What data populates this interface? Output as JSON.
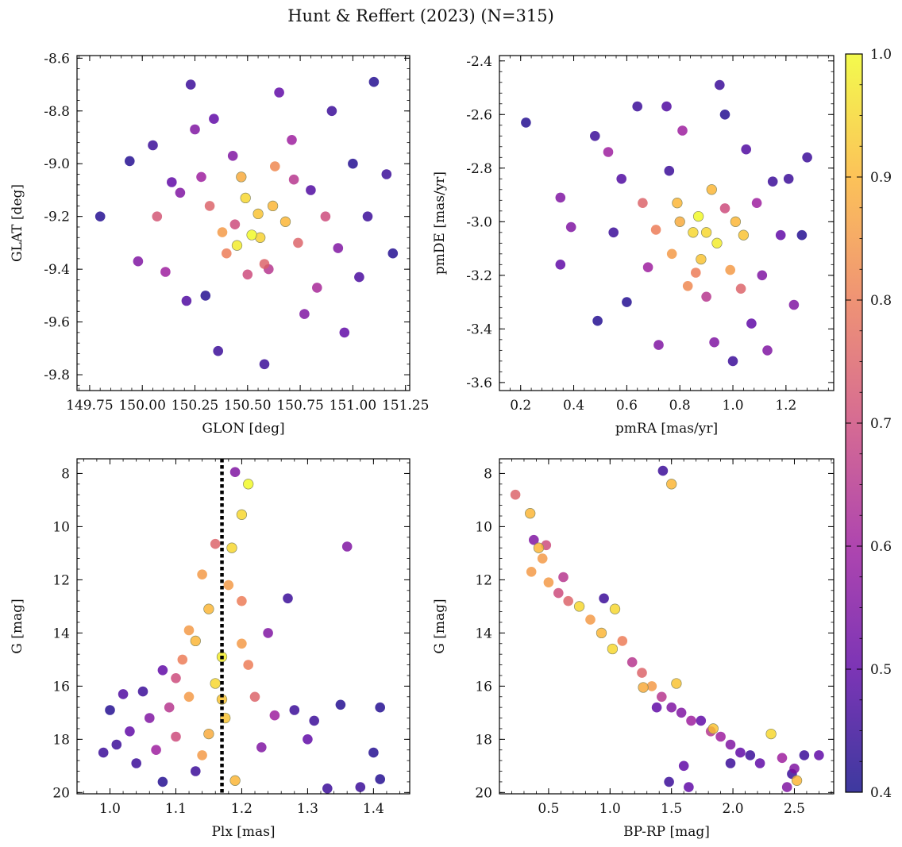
{
  "title": "Hunt & Reffert (2023) (N=315)",
  "colorbar": {
    "range": [
      0.4,
      1.0
    ],
    "ticks": [
      "0.4",
      "0.5",
      "0.6",
      "0.7",
      "0.8",
      "0.9",
      "1.0"
    ],
    "colormap_stops": [
      "#0d0887",
      "#5b02a3",
      "#9a179b",
      "#cb4678",
      "#eb7852",
      "#fbb32f",
      "#f0f921"
    ]
  },
  "chart_data": [
    {
      "type": "scatter",
      "name": "sky-position",
      "xlabel": "GLON [deg]",
      "ylabel": "GLAT [deg]",
      "xlim": [
        149.69,
        151.27
      ],
      "ylim": [
        -9.86,
        -8.59
      ],
      "xticks": [
        "149.75",
        "150.00",
        "150.25",
        "150.50",
        "150.75",
        "151.00",
        "151.25"
      ],
      "yticks": [
        "-8.6",
        "-8.8",
        "-9.0",
        "-9.2",
        "-9.4",
        "-9.6",
        "-9.8"
      ],
      "points": [
        [
          149.8,
          -9.2,
          0.42
        ],
        [
          149.94,
          -8.99,
          0.42
        ],
        [
          149.98,
          -9.37,
          0.55
        ],
        [
          150.05,
          -8.93,
          0.45
        ],
        [
          150.07,
          -9.2,
          0.72
        ],
        [
          150.11,
          -9.41,
          0.6
        ],
        [
          150.14,
          -9.07,
          0.5
        ],
        [
          150.18,
          -9.11,
          0.55
        ],
        [
          150.21,
          -9.52,
          0.48
        ],
        [
          150.23,
          -8.7,
          0.45
        ],
        [
          150.25,
          -8.87,
          0.55
        ],
        [
          150.3,
          -9.5,
          0.42
        ],
        [
          150.32,
          -9.16,
          0.75
        ],
        [
          150.34,
          -8.83,
          0.5
        ],
        [
          150.36,
          -9.71,
          0.45
        ],
        [
          150.4,
          -9.34,
          0.8
        ],
        [
          150.44,
          -9.23,
          0.7
        ],
        [
          150.47,
          -9.05,
          0.88
        ],
        [
          150.49,
          -9.13,
          0.95
        ],
        [
          150.52,
          -9.27,
          1.0
        ],
        [
          150.55,
          -9.19,
          0.92
        ],
        [
          150.58,
          -9.76,
          0.45
        ],
        [
          150.6,
          -9.4,
          0.65
        ],
        [
          150.63,
          -9.01,
          0.82
        ],
        [
          150.65,
          -8.73,
          0.5
        ],
        [
          150.68,
          -9.22,
          0.9
        ],
        [
          150.71,
          -8.91,
          0.6
        ],
        [
          150.74,
          -9.3,
          0.75
        ],
        [
          150.77,
          -9.57,
          0.55
        ],
        [
          150.8,
          -9.1,
          0.48
        ],
        [
          150.83,
          -9.47,
          0.62
        ],
        [
          150.87,
          -9.2,
          0.7
        ],
        [
          150.9,
          -8.8,
          0.45
        ],
        [
          150.93,
          -9.32,
          0.55
        ],
        [
          150.96,
          -9.64,
          0.5
        ],
        [
          151.0,
          -9.0,
          0.42
        ],
        [
          151.03,
          -9.43,
          0.47
        ],
        [
          151.07,
          -9.2,
          0.45
        ],
        [
          151.1,
          -8.69,
          0.42
        ],
        [
          151.16,
          -9.04,
          0.45
        ],
        [
          151.19,
          -9.34,
          0.42
        ],
        [
          150.45,
          -9.31,
          0.98
        ],
        [
          150.56,
          -9.28,
          0.94
        ],
        [
          150.62,
          -9.16,
          0.9
        ],
        [
          150.38,
          -9.26,
          0.85
        ],
        [
          150.5,
          -9.42,
          0.7
        ],
        [
          150.28,
          -9.05,
          0.6
        ],
        [
          150.72,
          -9.06,
          0.65
        ],
        [
          150.58,
          -9.38,
          0.75
        ],
        [
          150.43,
          -8.97,
          0.55
        ]
      ]
    },
    {
      "type": "scatter",
      "name": "proper-motion",
      "xlabel": "pmRA [mas/yr]",
      "ylabel": "pmDE [mas/yr]",
      "xlim": [
        0.12,
        1.38
      ],
      "ylim": [
        -3.63,
        -2.38
      ],
      "xticks": [
        "0.2",
        "0.4",
        "0.6",
        "0.8",
        "1.0",
        "1.2"
      ],
      "yticks": [
        "-2.4",
        "-2.6",
        "-2.8",
        "-3.0",
        "-3.2",
        "-3.4",
        "-3.6"
      ],
      "points": [
        [
          0.22,
          -2.63,
          0.42
        ],
        [
          0.35,
          -2.91,
          0.55
        ],
        [
          0.35,
          -3.16,
          0.5
        ],
        [
          0.39,
          -3.02,
          0.55
        ],
        [
          0.48,
          -2.68,
          0.45
        ],
        [
          0.49,
          -3.37,
          0.42
        ],
        [
          0.53,
          -2.74,
          0.6
        ],
        [
          0.55,
          -3.04,
          0.45
        ],
        [
          0.58,
          -2.84,
          0.48
        ],
        [
          0.6,
          -3.3,
          0.42
        ],
        [
          0.64,
          -2.57,
          0.45
        ],
        [
          0.66,
          -2.93,
          0.75
        ],
        [
          0.68,
          -3.17,
          0.6
        ],
        [
          0.71,
          -3.03,
          0.8
        ],
        [
          0.72,
          -3.46,
          0.55
        ],
        [
          0.75,
          -2.57,
          0.48
        ],
        [
          0.77,
          -3.12,
          0.85
        ],
        [
          0.79,
          -2.93,
          0.9
        ],
        [
          0.81,
          -2.66,
          0.6
        ],
        [
          0.83,
          -3.24,
          0.82
        ],
        [
          0.85,
          -3.04,
          0.95
        ],
        [
          0.87,
          -2.98,
          1.0
        ],
        [
          0.88,
          -3.14,
          0.92
        ],
        [
          0.9,
          -3.28,
          0.65
        ],
        [
          0.92,
          -2.88,
          0.9
        ],
        [
          0.94,
          -3.08,
          0.98
        ],
        [
          0.95,
          -2.49,
          0.45
        ],
        [
          0.97,
          -2.6,
          0.42
        ],
        [
          0.99,
          -3.18,
          0.85
        ],
        [
          1.01,
          -3.0,
          0.9
        ],
        [
          1.03,
          -3.25,
          0.75
        ],
        [
          1.05,
          -2.73,
          0.48
        ],
        [
          1.07,
          -3.38,
          0.5
        ],
        [
          1.09,
          -2.93,
          0.6
        ],
        [
          1.11,
          -3.2,
          0.55
        ],
        [
          1.13,
          -3.48,
          0.55
        ],
        [
          1.15,
          -2.85,
          0.45
        ],
        [
          1.18,
          -3.05,
          0.5
        ],
        [
          1.21,
          -2.84,
          0.45
        ],
        [
          1.23,
          -3.31,
          0.55
        ],
        [
          1.26,
          -3.05,
          0.42
        ],
        [
          1.28,
          -2.76,
          0.45
        ],
        [
          0.93,
          -3.45,
          0.55
        ],
        [
          1.0,
          -3.52,
          0.45
        ],
        [
          0.76,
          -2.81,
          0.45
        ],
        [
          0.9,
          -3.04,
          0.95
        ],
        [
          0.8,
          -3.0,
          0.88
        ],
        [
          1.04,
          -3.05,
          0.92
        ],
        [
          0.86,
          -3.19,
          0.8
        ],
        [
          0.97,
          -2.95,
          0.7
        ]
      ]
    },
    {
      "type": "scatter",
      "name": "parallax-magnitude",
      "xlabel": "Plx [mas]",
      "ylabel": "G [mag]",
      "xlim": [
        0.95,
        1.455
      ],
      "ylim": [
        20.05,
        7.45
      ],
      "xticks": [
        "1.0",
        "1.1",
        "1.2",
        "1.3",
        "1.4"
      ],
      "yticks": [
        "8",
        "10",
        "12",
        "14",
        "16",
        "18",
        "20"
      ],
      "vline": 1.17,
      "points": [
        [
          0.99,
          18.5,
          0.45
        ],
        [
          1.0,
          16.9,
          0.42
        ],
        [
          1.01,
          18.2,
          0.45
        ],
        [
          1.02,
          16.3,
          0.48
        ],
        [
          1.03,
          17.7,
          0.5
        ],
        [
          1.04,
          18.9,
          0.45
        ],
        [
          1.05,
          16.2,
          0.45
        ],
        [
          1.06,
          17.2,
          0.55
        ],
        [
          1.07,
          18.4,
          0.6
        ],
        [
          1.08,
          15.4,
          0.5
        ],
        [
          1.09,
          16.8,
          0.65
        ],
        [
          1.1,
          17.9,
          0.7
        ],
        [
          1.11,
          15.0,
          0.8
        ],
        [
          1.12,
          16.4,
          0.85
        ],
        [
          1.13,
          14.3,
          0.9
        ],
        [
          1.14,
          11.8,
          0.85
        ],
        [
          1.15,
          13.1,
          0.9
        ],
        [
          1.16,
          15.9,
          0.95
        ],
        [
          1.17,
          14.9,
          0.98
        ],
        [
          1.175,
          17.2,
          0.92
        ],
        [
          1.18,
          12.2,
          0.85
        ],
        [
          1.185,
          10.8,
          0.95
        ],
        [
          1.19,
          7.95,
          0.55
        ],
        [
          1.2,
          9.55,
          0.95
        ],
        [
          1.21,
          8.4,
          1.0
        ],
        [
          1.2,
          12.8,
          0.8
        ],
        [
          1.21,
          15.2,
          0.8
        ],
        [
          1.22,
          16.4,
          0.75
        ],
        [
          1.23,
          18.3,
          0.55
        ],
        [
          1.24,
          14.0,
          0.55
        ],
        [
          1.25,
          17.1,
          0.6
        ],
        [
          1.27,
          12.7,
          0.45
        ],
        [
          1.28,
          16.9,
          0.45
        ],
        [
          1.3,
          18.0,
          0.5
        ],
        [
          1.31,
          17.3,
          0.45
        ],
        [
          1.33,
          19.85,
          0.45
        ],
        [
          1.35,
          16.7,
          0.42
        ],
        [
          1.36,
          10.75,
          0.55
        ],
        [
          1.38,
          19.8,
          0.45
        ],
        [
          1.4,
          18.5,
          0.42
        ],
        [
          1.41,
          16.8,
          0.42
        ],
        [
          1.41,
          19.5,
          0.42
        ],
        [
          1.08,
          19.6,
          0.42
        ],
        [
          1.13,
          19.2,
          0.45
        ],
        [
          1.19,
          19.55,
          0.9
        ],
        [
          1.16,
          10.65,
          0.75
        ],
        [
          1.12,
          13.9,
          0.85
        ],
        [
          1.15,
          17.8,
          0.88
        ],
        [
          1.2,
          14.4,
          0.85
        ],
        [
          1.1,
          15.7,
          0.7
        ],
        [
          1.17,
          16.5,
          0.92
        ],
        [
          1.14,
          18.6,
          0.85
        ]
      ]
    },
    {
      "type": "scatter",
      "name": "color-magnitude",
      "xlabel": "BP-RP [mag]",
      "ylabel": "G [mag]",
      "xlim": [
        0.1,
        2.82
      ],
      "ylim": [
        20.05,
        7.45
      ],
      "xticks": [
        "0.5",
        "1.0",
        "1.5",
        "2.0",
        "2.5"
      ],
      "yticks": [
        "8",
        "10",
        "12",
        "14",
        "16",
        "18",
        "20"
      ],
      "points": [
        [
          0.23,
          8.8,
          0.75
        ],
        [
          0.35,
          9.5,
          0.9
        ],
        [
          0.38,
          10.5,
          0.55
        ],
        [
          0.42,
          10.8,
          0.9
        ],
        [
          0.45,
          11.2,
          0.85
        ],
        [
          0.36,
          11.7,
          0.85
        ],
        [
          0.48,
          10.7,
          0.7
        ],
        [
          0.5,
          12.1,
          0.85
        ],
        [
          0.58,
          12.5,
          0.7
        ],
        [
          0.66,
          12.8,
          0.75
        ],
        [
          0.75,
          13.0,
          0.95
        ],
        [
          0.84,
          13.5,
          0.85
        ],
        [
          0.93,
          14.0,
          0.9
        ],
        [
          1.02,
          14.6,
          0.95
        ],
        [
          1.1,
          14.3,
          0.8
        ],
        [
          1.18,
          15.1,
          0.65
        ],
        [
          1.26,
          15.5,
          0.75
        ],
        [
          1.34,
          16.0,
          0.85
        ],
        [
          1.42,
          16.4,
          0.65
        ],
        [
          1.5,
          16.8,
          0.55
        ],
        [
          1.58,
          17.0,
          0.55
        ],
        [
          1.66,
          17.3,
          0.6
        ],
        [
          1.74,
          17.3,
          0.5
        ],
        [
          1.82,
          17.7,
          0.65
        ],
        [
          1.9,
          17.9,
          0.6
        ],
        [
          1.98,
          18.2,
          0.55
        ],
        [
          2.06,
          18.5,
          0.5
        ],
        [
          2.14,
          18.6,
          0.45
        ],
        [
          2.22,
          18.9,
          0.5
        ],
        [
          2.31,
          17.8,
          0.95
        ],
        [
          2.4,
          18.7,
          0.6
        ],
        [
          2.5,
          19.1,
          0.55
        ],
        [
          2.58,
          18.6,
          0.45
        ],
        [
          2.7,
          18.6,
          0.5
        ],
        [
          1.43,
          7.9,
          0.45
        ],
        [
          1.5,
          8.4,
          0.9
        ],
        [
          0.95,
          12.7,
          0.45
        ],
        [
          1.04,
          13.1,
          0.95
        ],
        [
          1.54,
          15.9,
          0.92
        ],
        [
          1.38,
          16.8,
          0.5
        ],
        [
          1.48,
          19.6,
          0.45
        ],
        [
          1.64,
          19.8,
          0.5
        ],
        [
          1.6,
          19.0,
          0.5
        ],
        [
          1.98,
          18.9,
          0.45
        ],
        [
          2.48,
          19.3,
          0.45
        ],
        [
          2.52,
          19.55,
          0.9
        ],
        [
          2.44,
          19.8,
          0.55
        ],
        [
          0.62,
          11.9,
          0.65
        ],
        [
          1.27,
          16.05,
          0.88
        ],
        [
          1.84,
          17.6,
          0.92
        ]
      ]
    }
  ]
}
